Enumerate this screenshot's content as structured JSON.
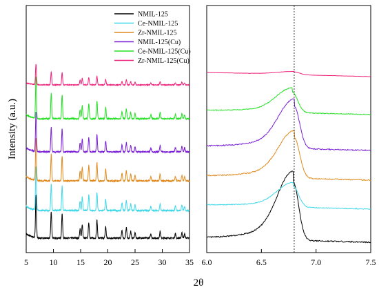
{
  "chart_data": [
    {
      "type": "line",
      "panel": "left",
      "xlabel": "2θ",
      "ylabel": "Intensity (a.u.)",
      "xlim": [
        5,
        35
      ],
      "xticks": [
        5,
        10,
        15,
        20,
        25,
        30,
        35
      ],
      "y_ticks_shown": false,
      "legend_position": "top-right",
      "peak_positions_2theta": [
        6.8,
        9.6,
        11.6,
        14.9,
        15.3,
        16.5,
        18.0,
        19.6,
        22.6,
        23.4,
        24.2,
        25.0,
        27.9,
        29.6,
        32.4,
        33.6,
        34.1
      ],
      "peak_relative_intensities": [
        1.0,
        0.62,
        0.58,
        0.22,
        0.32,
        0.36,
        0.42,
        0.27,
        0.18,
        0.24,
        0.16,
        0.13,
        0.1,
        0.16,
        0.11,
        0.13,
        0.1
      ],
      "series": [
        {
          "name": "NMIL-125",
          "color": "#000000",
          "offset": 0.0
        },
        {
          "name": "Ce-NMIL-125",
          "color": "#3fd8e8",
          "offset": 1.0
        },
        {
          "name": "Zr-NMIL-125",
          "color": "#e08a1e",
          "offset": 2.0
        },
        {
          "name": "NMIL-125(Cu)",
          "color": "#7a1fd6",
          "offset": 3.0
        },
        {
          "name": "Ce-NMIL-125(Cu)",
          "color": "#22e022",
          "offset": 4.0
        },
        {
          "name": "Zr-NMIL-125(Cu)",
          "color": "#f0207a",
          "offset": 5.0
        }
      ]
    },
    {
      "type": "line",
      "panel": "right",
      "xlim": [
        6.0,
        7.5
      ],
      "xticks": [
        "6.0",
        "6.5",
        "7.0",
        "7.5"
      ],
      "y_ticks_shown": false,
      "reference_line_x": 6.8,
      "series": [
        {
          "name": "NMIL-125",
          "color": "#000000",
          "peak_x": 6.79,
          "peak_height": 1.0
        },
        {
          "name": "Ce-NMIL-125",
          "color": "#3fd8e8",
          "peak_x": 6.79,
          "peak_height": 0.55
        },
        {
          "name": "Zr-NMIL-125",
          "color": "#e08a1e",
          "peak_x": 6.8,
          "peak_height": 0.75
        },
        {
          "name": "NMIL-125(Cu)",
          "color": "#7a1fd6",
          "peak_x": 6.8,
          "peak_height": 0.78
        },
        {
          "name": "Ce-NMIL-125(Cu)",
          "color": "#22e022",
          "peak_x": 6.78,
          "peak_height": 0.55
        },
        {
          "name": "Zr-NMIL-125(Cu)",
          "color": "#f0207a",
          "peak_x": 6.8,
          "peak_height": 0.22
        }
      ]
    }
  ]
}
